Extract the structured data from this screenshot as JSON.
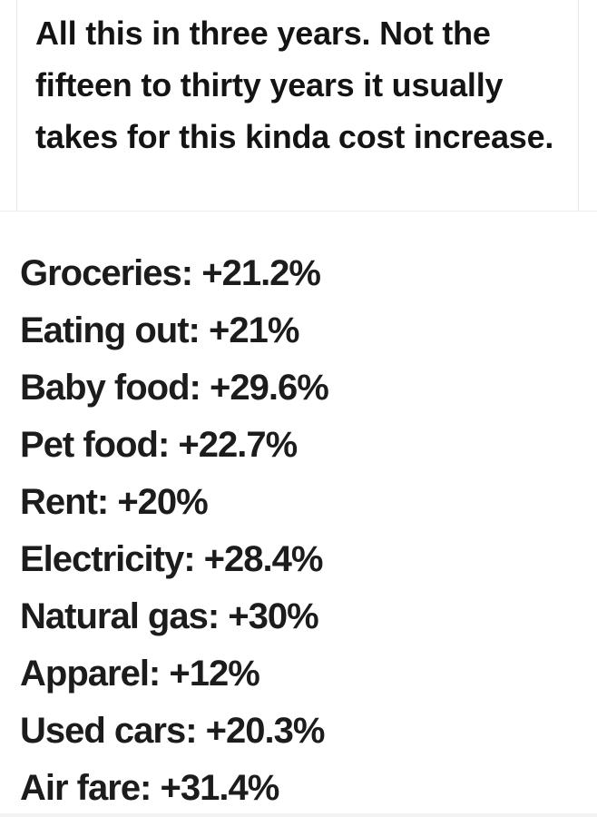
{
  "headline": "All this in three years.  Not the fifteen to thirty years it usually takes for this kinda cost increase.",
  "items": [
    "Groceries: +21.2%",
    "Eating out: +21%",
    "Baby food: +29.6%",
    "Pet food: +22.7%",
    "Rent: +20%",
    "Electricity: +28.4%",
    "Natural gas: +30%",
    "Apparel: +12%",
    "Used cars: +20.3%",
    "Air fare: +31.4%"
  ]
}
